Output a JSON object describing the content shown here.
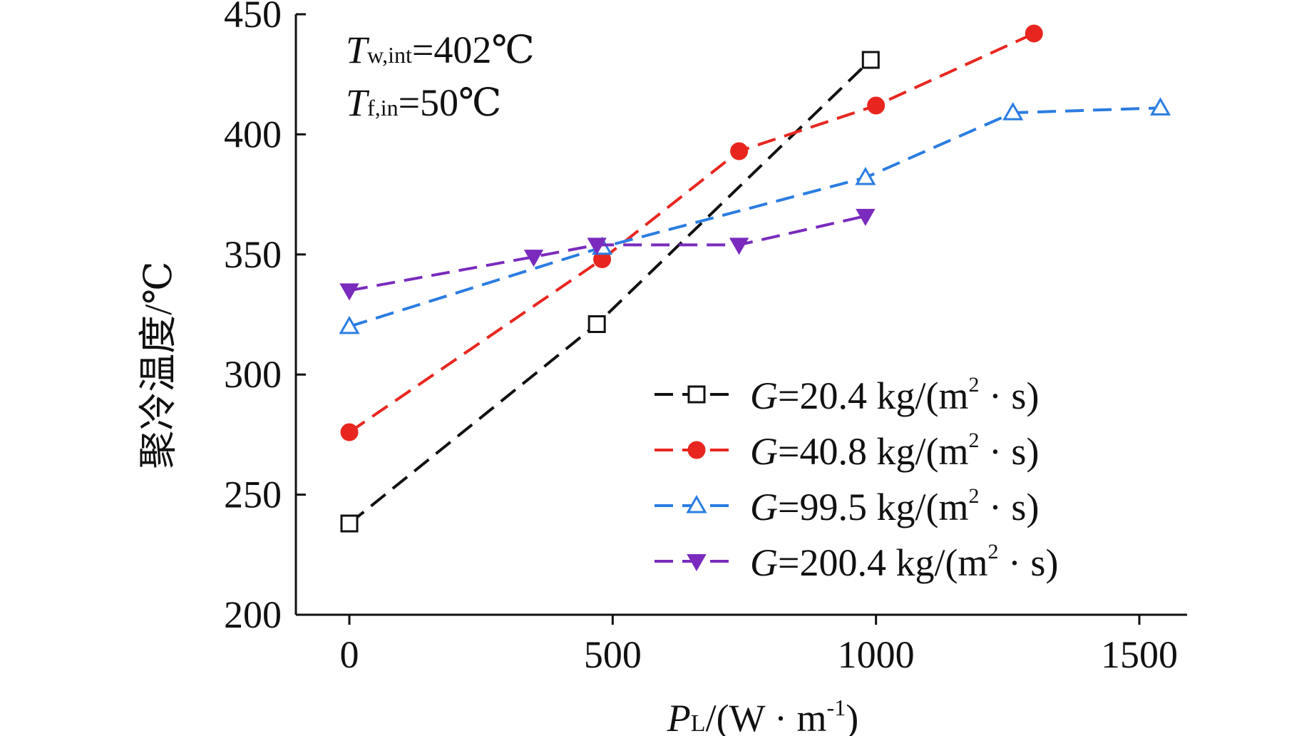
{
  "chart_data": {
    "type": "line",
    "xlabel": {
      "main": "P",
      "sub": "L",
      "rest": "/(W · m",
      "sup": "-1",
      "close": ")"
    },
    "ylabel": "聚冷温度/℃",
    "xlim": [
      -100,
      1600
    ],
    "ylim": [
      200,
      450
    ],
    "xticks": [
      0,
      500,
      1000,
      1500
    ],
    "xtick_labels": [
      "0",
      "500",
      "1000",
      "1500"
    ],
    "yticks": [
      200,
      250,
      300,
      350,
      400,
      450
    ],
    "ytick_labels": [
      "200",
      "250",
      "300",
      "350",
      "400",
      "450"
    ],
    "grid": false,
    "legend_position": "bottom-right",
    "annotations": [
      {
        "main": "T",
        "sub": "w,int",
        "rest": "=402℃"
      },
      {
        "main": "T",
        "sub": "f,in",
        "rest": "=50℃"
      }
    ],
    "series": [
      {
        "name": "G=20.4 kg/(m² · s)",
        "label": {
          "var": "G",
          "pre": "=20.4 kg/(m",
          "sup": "2",
          "post": " · s)"
        },
        "color": "#111111",
        "marker": "square-open",
        "x": [
          0,
          470,
          990
        ],
        "y": [
          238,
          321,
          431
        ]
      },
      {
        "name": "G=40.8 kg/(m² · s)",
        "label": {
          "var": "G",
          "pre": "=40.8 kg/(m",
          "sup": "2",
          "post": " · s)"
        },
        "color": "#e8261f",
        "marker": "circle-filled",
        "x": [
          0,
          480,
          740,
          1000,
          1300
        ],
        "y": [
          276,
          348,
          393,
          412,
          442
        ]
      },
      {
        "name": "G=99.5 kg/(m² · s)",
        "label": {
          "var": "G",
          "pre": "=99.5 kg/(m",
          "sup": "2",
          "post": " · s)"
        },
        "color": "#2a7de1",
        "marker": "triangle-up-open",
        "x": [
          0,
          480,
          980,
          1260,
          1540
        ],
        "y": [
          320,
          353,
          382,
          409,
          411
        ]
      },
      {
        "name": "G=200.4 kg/(m² · s)",
        "label": {
          "var": "G",
          "pre": "=200.4 kg/(m",
          "sup": "2",
          "post": " · s)"
        },
        "color": "#7a2bbd",
        "marker": "triangle-down-filled",
        "x": [
          0,
          350,
          470,
          740,
          980
        ],
        "y": [
          335,
          349,
          354,
          354,
          366
        ]
      }
    ]
  }
}
